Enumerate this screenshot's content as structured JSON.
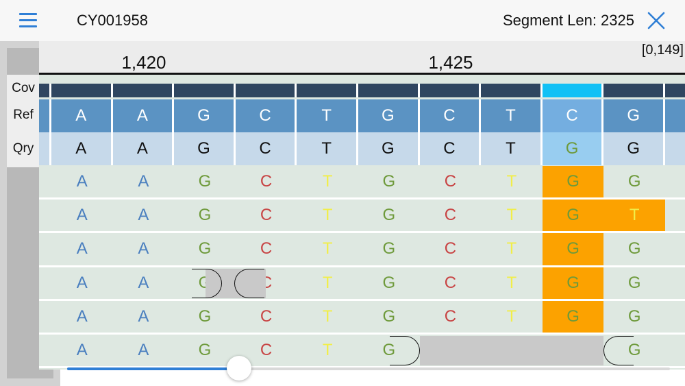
{
  "header": {
    "title": "CY001958",
    "segment_label": "Segment Len: 2325",
    "menu_icon": "hamburger-menu-icon",
    "close_icon": "close-icon",
    "accent_color": "#2f7fd6"
  },
  "ruler": {
    "ticks": [
      "1,420",
      "1,425"
    ],
    "range": "[0,149]"
  },
  "labels": {
    "coverage": "Cov",
    "reference": "Ref",
    "query": "Qry"
  },
  "reference": [
    "A",
    "A",
    "G",
    "C",
    "T",
    "G",
    "C",
    "T",
    "C",
    "G",
    ""
  ],
  "query": [
    "A",
    "A",
    "G",
    "C",
    "T",
    "G",
    "C",
    "T",
    "G",
    "G",
    ""
  ],
  "coverage": {
    "highlight_index": 8
  },
  "colors": {
    "A": "#4a7fbf",
    "C": "#c84444",
    "G": "#6e9a3b",
    "T": "#f1ee48",
    "coverage": "#2f4660",
    "coverage_highlight": "#10c1f5",
    "reference_bg": "#5b93c3",
    "query_bg": "#c6d9ea",
    "variant": "#fca200"
  },
  "reads": [
    {
      "bases": [
        "A",
        "A",
        "G",
        "C",
        "T",
        "G",
        "C",
        "T",
        "G",
        "G",
        ""
      ],
      "variants": [
        8
      ]
    },
    {
      "bases": [
        "A",
        "A",
        "G",
        "C",
        "T",
        "G",
        "C",
        "T",
        "G",
        "T",
        ""
      ],
      "variants": [
        8,
        9
      ]
    },
    {
      "bases": [
        "A",
        "A",
        "G",
        "C",
        "T",
        "G",
        "C",
        "T",
        "G",
        "G",
        ""
      ],
      "variants": [
        8
      ]
    },
    {
      "bases": [
        "A",
        "A",
        "G",
        "C",
        "T",
        "G",
        "C",
        "T",
        "G",
        "G",
        ""
      ],
      "variants": [
        8
      ],
      "gap_between": [
        2,
        3
      ]
    },
    {
      "bases": [
        "A",
        "A",
        "G",
        "C",
        "T",
        "G",
        "C",
        "T",
        "G",
        "G",
        ""
      ],
      "variants": [
        8
      ]
    },
    {
      "bases": [
        "A",
        "A",
        "G",
        "C",
        "T",
        "G",
        "",
        "",
        "",
        "G",
        ""
      ],
      "variants": [],
      "gap_span": [
        6,
        8
      ]
    }
  ],
  "slider": {
    "value": 0.28
  }
}
